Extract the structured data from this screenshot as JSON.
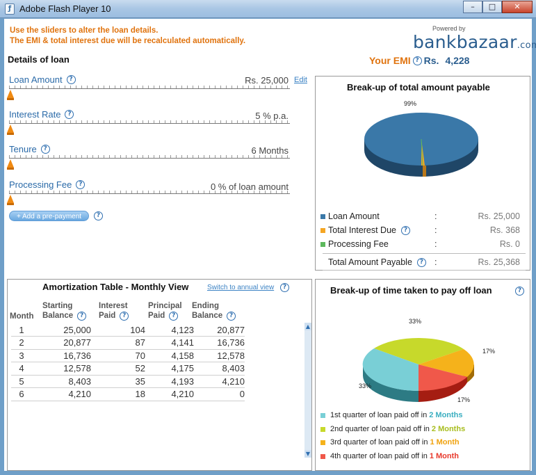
{
  "window": {
    "title": "Adobe Flash Player 10",
    "minimize": "–",
    "maximize": "□",
    "close": "✕"
  },
  "instructions": [
    "Use the sliders to alter the loan details.",
    "The EMI & total interest due will be recalculated automatically."
  ],
  "brand": {
    "powered_by": "Powered by",
    "logo_main": "bankbazaar",
    "logo_suffix": ".com"
  },
  "emi": {
    "label": "Your EMI",
    "currency": "Rs.",
    "value": "4,228"
  },
  "details_title": "Details of loan",
  "sliders": [
    {
      "label": "Loan Amount",
      "value": "Rs. 25,000",
      "position": 0
    },
    {
      "label": "Interest Rate",
      "value": "5 %  p.a.",
      "position": 0
    },
    {
      "label": "Tenure",
      "value": "6 Months",
      "position": 0
    },
    {
      "label": "Processing Fee",
      "value": "0 % of loan amount",
      "position": 0
    }
  ],
  "edit_label": "Edit",
  "prepayment_button": "+ Add a pre-payment",
  "breakup_total": {
    "title": "Break-up of total amount payable",
    "pie_label": "99%",
    "legend": [
      {
        "label": "Loan Amount",
        "value": "Rs. 25,000",
        "color": "#3a78a8"
      },
      {
        "label": "Total Interest Due",
        "value": "Rs. 368",
        "color": "#f5a623"
      },
      {
        "label": "Processing Fee",
        "value": "Rs. 0",
        "color": "#5cb85c"
      }
    ],
    "total_label": "Total Amount Payable",
    "total_value": "Rs. 25,368",
    "colon": ":"
  },
  "amortization": {
    "title": "Amortization Table - Monthly View",
    "switch_link": "Switch to annual view",
    "headers": {
      "month": "Month",
      "starting_balance_1": "Starting",
      "starting_balance_2": "Balance",
      "interest_1": "Interest",
      "interest_2": "Paid",
      "principal_1": "Principal",
      "principal_2": "Paid",
      "ending_1": "Ending",
      "ending_2": "Balance"
    },
    "rows": [
      [
        "1",
        "25,000",
        "104",
        "4,123",
        "20,877"
      ],
      [
        "2",
        "20,877",
        "87",
        "4,141",
        "16,736"
      ],
      [
        "3",
        "16,736",
        "70",
        "4,158",
        "12,578"
      ],
      [
        "4",
        "12,578",
        "52",
        "4,175",
        "8,403"
      ],
      [
        "5",
        "8,403",
        "35",
        "4,193",
        "4,210"
      ],
      [
        "6",
        "4,210",
        "18",
        "4,210",
        "0"
      ]
    ]
  },
  "breakup_time": {
    "title": "Break-up of time taken to pay off loan",
    "slices": [
      {
        "label": "33%",
        "color": "#c7d92b"
      },
      {
        "label": "17%",
        "color": "#f5b21b"
      },
      {
        "label": "17%",
        "color": "#f0584a"
      },
      {
        "label": "33%",
        "color": "#79cfd6"
      }
    ],
    "legend": [
      {
        "text": "1st quarter of loan paid off in",
        "value": "2 Months",
        "color": "#79cfd6",
        "value_color": "#3aaec0"
      },
      {
        "text": "2nd quarter of loan paid off in",
        "value": "2 Months",
        "color": "#c7d92b",
        "value_color": "#a8bd1e"
      },
      {
        "text": "3rd quarter of loan paid off in",
        "value": "1 Month",
        "color": "#f5b21b",
        "value_color": "#f0a20e"
      },
      {
        "text": "4th quarter of loan paid off in",
        "value": "1 Month",
        "color": "#f0584a",
        "value_color": "#e8392b"
      }
    ]
  },
  "help_icon": "?"
}
